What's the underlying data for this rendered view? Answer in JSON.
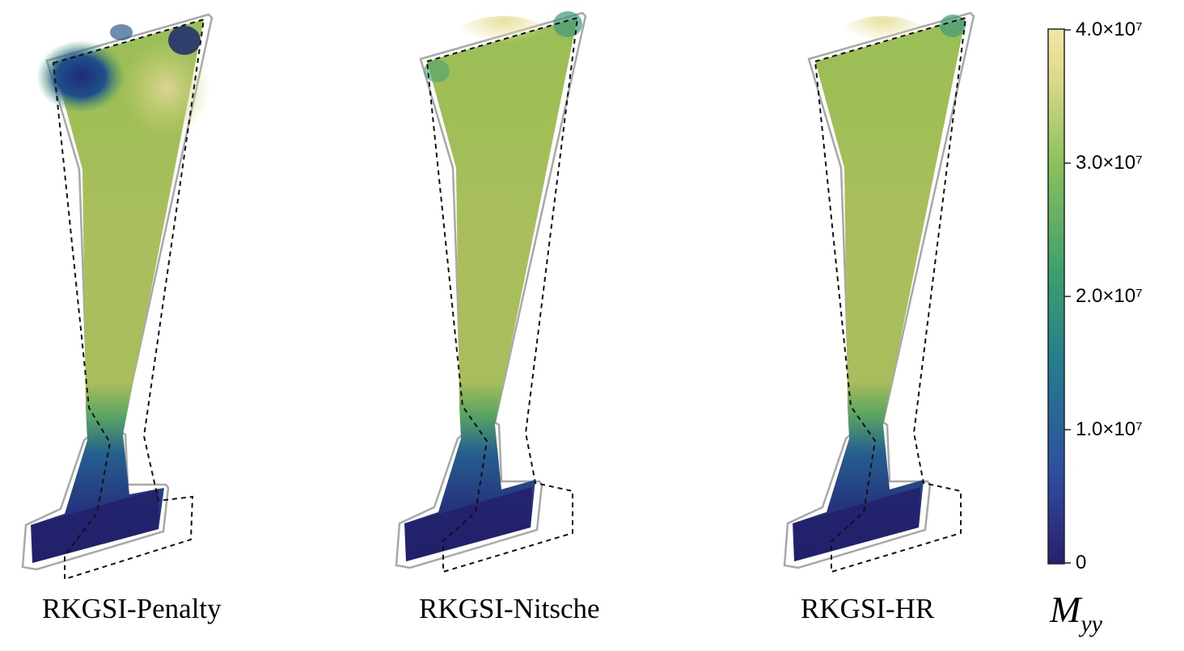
{
  "panels": [
    {
      "caption": "RKGSI-Penalty"
    },
    {
      "caption": "RKGSI-Nitsche"
    },
    {
      "caption": "RKGSI-HR"
    }
  ],
  "colorbar": {
    "symbol": "M",
    "subscript": "yy",
    "ticks": [
      "4.0×10⁷",
      "3.0×10⁷",
      "2.0×10⁷",
      "1.0×10⁷",
      "0"
    ],
    "colors": [
      "#2a1e6e",
      "#2e4fa0",
      "#257d8e",
      "#3fa06e",
      "#8cc15a",
      "#d9d88a",
      "#f3e7a3"
    ]
  }
}
